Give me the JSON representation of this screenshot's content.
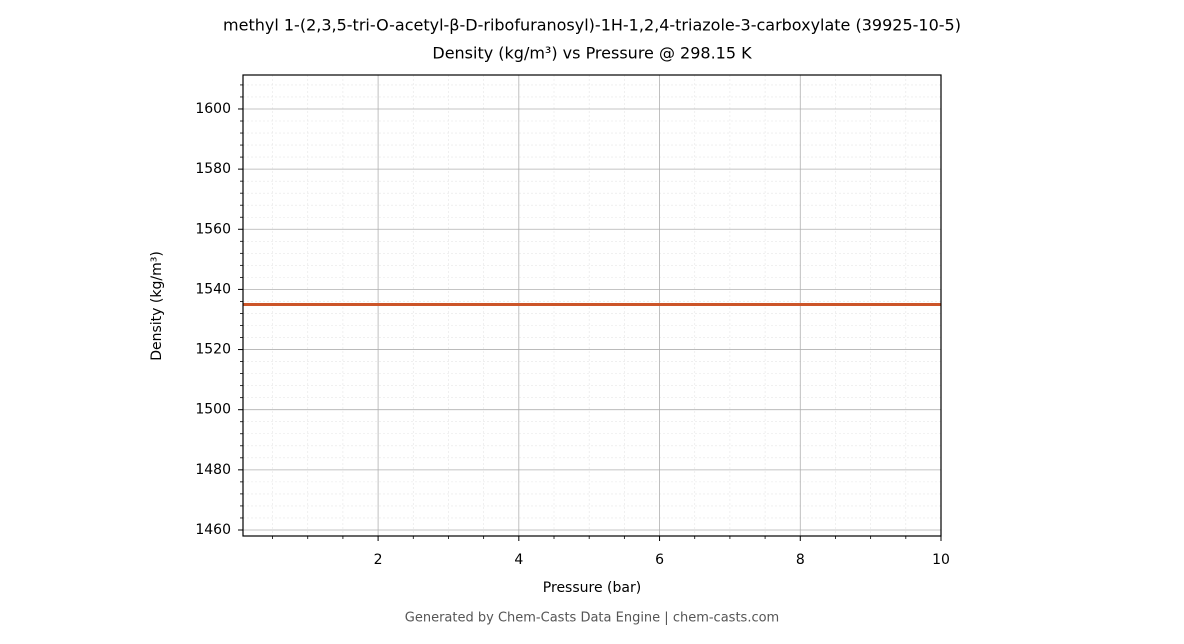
{
  "chart_data": {
    "type": "line",
    "title": "methyl 1-(2,3,5-tri-O-acetyl-β-D-ribofuranosyl)-1H-1,2,4-triazole-3-carboxylate (39925-10-5)",
    "subtitle": "Density (kg/m³) vs Pressure @ 298.15 K",
    "x_label": "Pressure (bar)",
    "y_label": "Density (kg/m³)",
    "footer": "Generated by Chem-Casts Data Engine | chem-casts.com",
    "x": [
      0.08,
      10
    ],
    "series": [
      {
        "name": "Density",
        "color": "#cc5529",
        "values": [
          1535,
          1535
        ]
      }
    ],
    "xlim": [
      0.08,
      10
    ],
    "ylim": [
      1458,
      1611.3
    ],
    "xticks": [
      2,
      4,
      6,
      8,
      10
    ],
    "yticks": [
      1460,
      1480,
      1500,
      1520,
      1540,
      1560,
      1580,
      1600
    ],
    "xminorticks": [
      0.5,
      1,
      1.5,
      2.5,
      3,
      3.5,
      4.5,
      5,
      5.5,
      6.5,
      7,
      7.5,
      8.5,
      9,
      9.5
    ],
    "yminorticks": [
      1464,
      1468,
      1472,
      1476,
      1484,
      1488,
      1492,
      1496,
      1504,
      1508,
      1512,
      1516,
      1524,
      1528,
      1532,
      1536,
      1544,
      1548,
      1552,
      1556,
      1564,
      1568,
      1572,
      1576,
      1584,
      1588,
      1592,
      1596,
      1604,
      1608
    ],
    "grid": true
  }
}
